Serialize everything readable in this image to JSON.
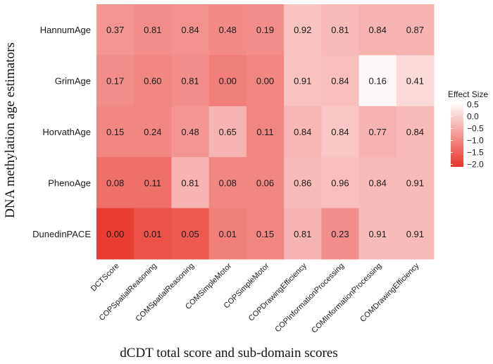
{
  "chart_data": {
    "type": "heatmap",
    "title": "",
    "xlabel": "dCDT total score and sub-domain scores",
    "ylabel": "DNA methylation age estimators",
    "rows": [
      "HannumAge",
      "GrimAge",
      "HorvathAge",
      "PhenoAge",
      "DunedinPACE"
    ],
    "columns": [
      "DCTScore",
      "COPSpatialReasoning",
      "COMSpatialReasoning",
      "COMSimpleMotor",
      "COPSimpleMotor",
      "COPDrawingEfficiency",
      "COPInformationProcessing",
      "COMInformationProcessing",
      "COMDrawingEfficiency"
    ],
    "values": [
      [
        0.37,
        0.81,
        0.84,
        0.48,
        0.19,
        0.92,
        0.81,
        0.84,
        0.87
      ],
      [
        0.17,
        0.6,
        0.81,
        0.0,
        0.0,
        0.91,
        0.84,
        0.16,
        0.41
      ],
      [
        0.15,
        0.24,
        0.48,
        0.65,
        0.11,
        0.84,
        0.84,
        0.77,
        0.84
      ],
      [
        0.08,
        0.11,
        0.81,
        0.08,
        0.06,
        0.86,
        0.96,
        0.84,
        0.91
      ],
      [
        0.0,
        0.01,
        0.05,
        0.01,
        0.15,
        0.81,
        0.23,
        0.91,
        0.91
      ]
    ],
    "value_labels": [
      [
        "0.37",
        "0.81",
        "0.84",
        "0.48",
        "0.19",
        "0.92",
        "0.81",
        "0.84",
        "0.87"
      ],
      [
        "0.17",
        "0.60",
        "0.81",
        "0.00",
        "0.00",
        "0.91",
        "0.84",
        "0.16",
        "0.41"
      ],
      [
        "0.15",
        "0.24",
        "0.48",
        "0.65",
        "0.11",
        "0.84",
        "0.84",
        "0.77",
        "0.84"
      ],
      [
        "0.08",
        "0.11",
        "0.81",
        "0.08",
        "0.06",
        "0.86",
        "0.96",
        "0.84",
        "0.91"
      ],
      [
        "0.00",
        "0.01",
        "0.05",
        "0.01",
        "0.15",
        "0.81",
        "0.23",
        "0.91",
        "0.91"
      ]
    ],
    "effect_sizes": [
      [
        -0.8,
        -0.9,
        -0.85,
        -0.95,
        -0.9,
        -0.2,
        -0.3,
        -0.4,
        -0.4
      ],
      [
        -0.9,
        -1.0,
        -0.9,
        -1.1,
        -1.0,
        -0.2,
        -0.25,
        0.5,
        0.1
      ],
      [
        -1.0,
        -1.0,
        -0.8,
        -0.4,
        -1.0,
        -0.35,
        -0.15,
        -0.4,
        -0.3
      ],
      [
        -1.3,
        -1.3,
        -0.4,
        -1.0,
        -1.0,
        -0.3,
        -0.25,
        -0.3,
        -0.3
      ],
      [
        -2.0,
        -1.7,
        -1.6,
        -1.1,
        -1.0,
        -0.4,
        -0.9,
        -0.3,
        -0.3
      ]
    ],
    "legend": {
      "title": "Effect Size",
      "ticks": [
        0.5,
        0.0,
        -0.5,
        -1.0,
        -1.5,
        -2.0
      ],
      "tick_labels": [
        "0.5",
        "0.0",
        "−0.5",
        "−1.0",
        "−1.5",
        "−2.0"
      ],
      "range": [
        -2.1,
        0.6
      ],
      "position": "right"
    },
    "colors": {
      "low": "#e8342a",
      "high": "#ffffff"
    }
  }
}
